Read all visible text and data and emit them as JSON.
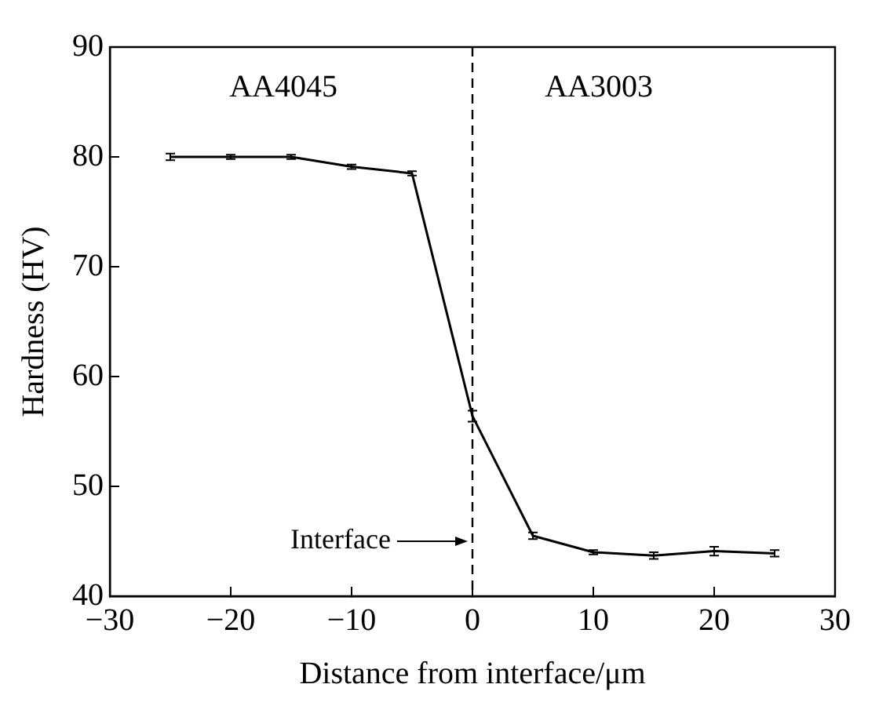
{
  "chart_data": {
    "type": "line",
    "xlabel": "Distance from interface/μm",
    "ylabel": "Hardness (HV)",
    "x": [
      -25,
      -20,
      -15,
      -10,
      -5,
      0,
      5,
      10,
      15,
      20,
      25
    ],
    "series": [
      {
        "color": "#000000",
        "values": [
          80.0,
          80.0,
          80.0,
          79.1,
          78.5,
          56.4,
          45.5,
          44.0,
          43.7,
          44.1,
          43.9
        ],
        "errors": [
          0.3,
          0.2,
          0.2,
          0.2,
          0.2,
          0.5,
          0.3,
          0.2,
          0.3,
          0.4,
          0.3
        ]
      }
    ],
    "xlim": [
      -30,
      30
    ],
    "xticks": [
      -30,
      -20,
      -10,
      0,
      10,
      20,
      30
    ],
    "ylim": [
      40,
      90
    ],
    "yticks": [
      40,
      50,
      60,
      70,
      80,
      90
    ],
    "ref_lines": [
      {
        "axis": "x",
        "value": 0,
        "color": "#000000",
        "line_style": "dashed"
      }
    ],
    "annotations": [
      "AA4045",
      "AA3003",
      {
        "text": "Interface",
        "x": 0,
        "y": 45
      }
    ],
    "grid": false,
    "legend": false,
    "line_style": "solid"
  }
}
